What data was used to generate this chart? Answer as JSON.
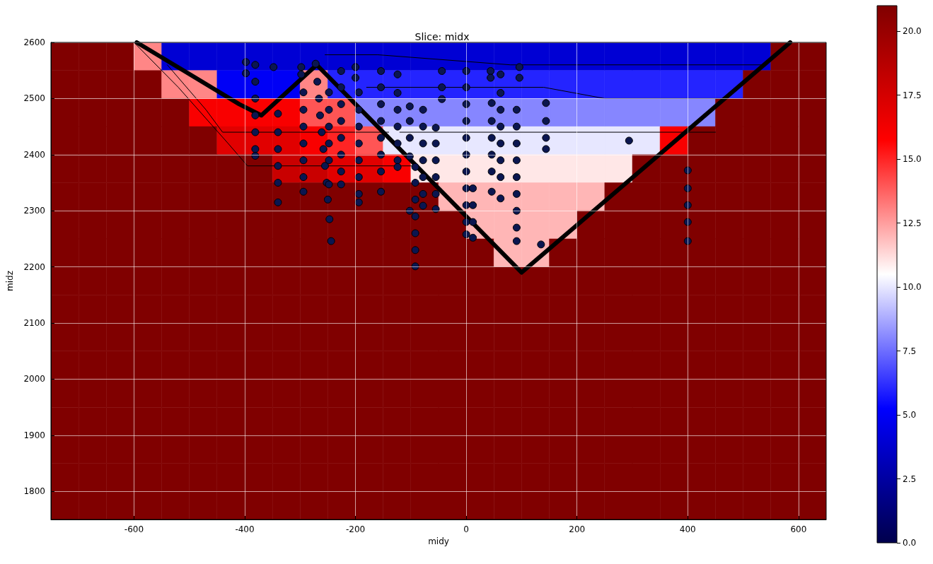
{
  "chart_data": {
    "type": "heatmap",
    "title": "Slice: midx",
    "xlabel": "midy",
    "ylabel": "midz",
    "cells": [
      [
        21,
        21,
        21,
        13,
        4,
        4,
        4,
        4,
        4,
        4,
        4,
        4,
        4,
        4,
        4,
        4,
        4,
        4,
        4,
        4,
        4,
        4,
        4,
        4,
        4,
        4,
        21,
        21
      ],
      [
        21,
        21,
        21,
        21,
        13,
        13,
        5,
        5,
        5,
        13,
        6,
        6,
        6,
        6,
        6,
        6,
        6,
        6,
        6,
        6,
        6,
        6,
        6,
        6,
        6,
        21,
        21,
        21
      ],
      [
        21,
        21,
        21,
        21,
        21,
        16,
        16,
        16,
        16,
        14,
        14,
        8,
        8,
        8,
        8,
        8,
        8,
        8,
        8,
        8,
        8,
        8,
        8,
        8,
        21,
        21,
        21,
        21
      ],
      [
        21,
        21,
        21,
        21,
        21,
        21,
        17,
        17,
        17,
        16,
        15,
        14,
        10,
        10,
        10,
        10,
        10,
        10,
        10,
        10,
        10,
        10,
        16,
        21,
        21,
        21,
        21,
        21
      ],
      [
        21,
        21,
        21,
        21,
        21,
        21,
        21,
        21,
        18,
        18,
        17,
        17,
        16,
        11,
        11,
        11,
        11,
        11,
        11,
        11,
        11,
        21,
        21,
        21,
        21,
        21,
        21,
        21
      ],
      [
        21,
        21,
        21,
        21,
        21,
        21,
        21,
        21,
        21,
        21,
        21,
        21,
        21,
        21,
        12,
        12,
        12,
        12,
        12,
        12,
        21,
        21,
        21,
        21,
        21,
        21,
        21,
        21
      ],
      [
        21,
        21,
        21,
        21,
        21,
        21,
        21,
        21,
        21,
        21,
        21,
        21,
        21,
        21,
        21,
        12,
        12,
        12,
        12,
        21,
        21,
        21,
        21,
        21,
        21,
        21,
        21,
        21
      ],
      [
        21,
        21,
        21,
        21,
        21,
        21,
        21,
        21,
        21,
        21,
        21,
        21,
        21,
        21,
        21,
        21,
        12,
        12,
        21,
        21,
        21,
        21,
        21,
        21,
        21,
        21,
        21,
        21
      ],
      [
        21,
        21,
        21,
        21,
        21,
        21,
        21,
        21,
        21,
        21,
        21,
        21,
        21,
        21,
        21,
        21,
        21,
        21,
        21,
        21,
        21,
        21,
        21,
        21,
        21,
        21,
        21,
        21
      ],
      [
        21,
        21,
        21,
        21,
        21,
        21,
        21,
        21,
        21,
        21,
        21,
        21,
        21,
        21,
        21,
        21,
        21,
        21,
        21,
        21,
        21,
        21,
        21,
        21,
        21,
        21,
        21,
        21
      ],
      [
        21,
        21,
        21,
        21,
        21,
        21,
        21,
        21,
        21,
        21,
        21,
        21,
        21,
        21,
        21,
        21,
        21,
        21,
        21,
        21,
        21,
        21,
        21,
        21,
        21,
        21,
        21,
        21
      ],
      [
        21,
        21,
        21,
        21,
        21,
        21,
        21,
        21,
        21,
        21,
        21,
        21,
        21,
        21,
        21,
        21,
        21,
        21,
        21,
        21,
        21,
        21,
        21,
        21,
        21,
        21,
        21,
        21
      ],
      [
        21,
        21,
        21,
        21,
        21,
        21,
        21,
        21,
        21,
        21,
        21,
        21,
        21,
        21,
        21,
        21,
        21,
        21,
        21,
        21,
        21,
        21,
        21,
        21,
        21,
        21,
        21,
        21
      ],
      [
        21,
        21,
        21,
        21,
        21,
        21,
        21,
        21,
        21,
        21,
        21,
        21,
        21,
        21,
        21,
        21,
        21,
        21,
        21,
        21,
        21,
        21,
        21,
        21,
        21,
        21,
        21,
        21
      ],
      [
        21,
        21,
        21,
        21,
        21,
        21,
        21,
        21,
        21,
        21,
        21,
        21,
        21,
        21,
        21,
        21,
        21,
        21,
        21,
        21,
        21,
        21,
        21,
        21,
        21,
        21,
        21,
        21
      ],
      [
        21,
        21,
        21,
        21,
        21,
        21,
        21,
        21,
        21,
        21,
        21,
        21,
        21,
        21,
        21,
        21,
        21,
        21,
        21,
        21,
        21,
        21,
        21,
        21,
        21,
        21,
        21,
        21
      ],
      [
        21,
        21,
        21,
        21,
        21,
        21,
        21,
        21,
        21,
        21,
        21,
        21,
        21,
        21,
        21,
        21,
        21,
        21,
        21,
        21,
        21,
        21,
        21,
        21,
        21,
        21,
        21,
        21
      ]
    ],
    "colors": [
      "#00004c",
      "#0000ff",
      "#ffffff",
      "#ff0000",
      "#800000"
    ],
    "clim": [
      0,
      21
    ],
    "cticks": [
      {
        "value": 0,
        "label": "0.0"
      },
      {
        "value": 2.5,
        "label": "2.5"
      },
      {
        "value": 5,
        "label": "5.0"
      },
      {
        "value": 7.5,
        "label": "7.5"
      },
      {
        "value": 10,
        "label": "10.0"
      },
      {
        "value": 12.5,
        "label": "12.5"
      },
      {
        "value": 15,
        "label": "15.0"
      },
      {
        "value": 17.5,
        "label": "17.5"
      },
      {
        "value": 20,
        "label": "20.0"
      }
    ],
    "series": [
      {
        "type": "line",
        "color": "#000000",
        "x": [
          -595,
          -410,
          -370,
          -270,
          100,
          585
        ],
        "values": [
          2600,
          2490,
          2470,
          2560,
          2190,
          2600
        ]
      },
      {
        "type": "line",
        "color": "#000000",
        "x": [
          -600,
          -520,
          -430,
          -395,
          -90
        ],
        "values": [
          2600,
          2520,
          2420,
          2380,
          2380
        ]
      },
      {
        "type": "line",
        "color": "#000000",
        "x": [
          -540,
          -470,
          -440,
          -140
        ],
        "values": [
          2560,
          2480,
          2440,
          2440
        ]
      },
      {
        "type": "line",
        "color": "#000000",
        "x": [
          -255,
          -160,
          80,
          540
        ],
        "values": [
          2578,
          2578,
          2560,
          2560
        ]
      },
      {
        "type": "line",
        "color": "#000000",
        "x": [
          -180,
          140,
          250,
          470
        ],
        "values": [
          2520,
          2520,
          2500,
          2500
        ]
      },
      {
        "type": "line",
        "color": "#000000",
        "x": [
          -120,
          450
        ],
        "values": [
          2440,
          2440
        ]
      },
      {
        "type": "scatter",
        "color": "#0b1650",
        "marker": "circle",
        "x": [
          -398,
          -398,
          -381,
          -381,
          -381,
          -381,
          -381,
          -381,
          -381,
          -348,
          -340,
          -340,
          -340,
          -340,
          -340,
          -340,
          -298,
          -298,
          -294,
          -294,
          -294,
          -294,
          -294,
          -294,
          -294,
          -272,
          -269,
          -266,
          -264,
          -261,
          -258,
          -255,
          -252,
          -250,
          -247,
          -244,
          -248,
          -248,
          -248,
          -248,
          -248,
          -248,
          -226,
          -226,
          -226,
          -226,
          -226,
          -226,
          -226,
          -226,
          -200,
          -200,
          -194,
          -194,
          -194,
          -194,
          -194,
          -194,
          -194,
          -194,
          -154,
          -154,
          -154,
          -154,
          -154,
          -154,
          -154,
          -154,
          -124,
          -124,
          -124,
          -124,
          -124,
          -124,
          -124,
          -102,
          -102,
          -102,
          -102,
          -92,
          -92,
          -92,
          -92,
          -92,
          -92,
          -92,
          -78,
          -78,
          -78,
          -78,
          -78,
          -78,
          -78,
          -55,
          -55,
          -55,
          -55,
          -55,
          -55,
          -44,
          -44,
          -44,
          0,
          0,
          0,
          0,
          0,
          0,
          0,
          0,
          0,
          0,
          0,
          12,
          12,
          12,
          12,
          44,
          44,
          46,
          46,
          46,
          46,
          46,
          46,
          62,
          62,
          62,
          62,
          62,
          62,
          62,
          62,
          91,
          91,
          91,
          91,
          91,
          91,
          91,
          91,
          91,
          96,
          96,
          144,
          144,
          144,
          144,
          294,
          400,
          400,
          400,
          400,
          400,
          -102,
          135
        ],
        "values": [
          2565,
          2545,
          2560,
          2530,
          2500,
          2470,
          2440,
          2410,
          2398,
          2556,
          2473,
          2440,
          2410,
          2380,
          2350,
          2315,
          2556,
          2543,
          2511,
          2480,
          2450,
          2420,
          2390,
          2360,
          2334,
          2562,
          2530,
          2500,
          2470,
          2440,
          2410,
          2380,
          2350,
          2320,
          2285,
          2246,
          2511,
          2480,
          2450,
          2420,
          2390,
          2347,
          2549,
          2520,
          2490,
          2460,
          2430,
          2400,
          2370,
          2347,
          2556,
          2537,
          2511,
          2480,
          2450,
          2420,
          2390,
          2360,
          2330,
          2315,
          2549,
          2520,
          2490,
          2460,
          2430,
          2400,
          2370,
          2334,
          2543,
          2510,
          2480,
          2450,
          2420,
          2390,
          2378,
          2486,
          2460,
          2430,
          2397,
          2378,
          2350,
          2320,
          2290,
          2260,
          2230,
          2201,
          2480,
          2450,
          2420,
          2390,
          2360,
          2330,
          2309,
          2448,
          2420,
          2390,
          2360,
          2330,
          2303,
          2549,
          2520,
          2499,
          2549,
          2520,
          2490,
          2460,
          2430,
          2400,
          2370,
          2340,
          2310,
          2280,
          2258,
          2340,
          2310,
          2280,
          2252,
          2549,
          2537,
          2492,
          2460,
          2430,
          2400,
          2370,
          2334,
          2543,
          2510,
          2480,
          2450,
          2420,
          2390,
          2360,
          2322,
          2480,
          2450,
          2420,
          2390,
          2360,
          2330,
          2300,
          2270,
          2246,
          2556,
          2537,
          2492,
          2460,
          2430,
          2410,
          2425,
          2372,
          2340,
          2310,
          2280,
          2246,
          2300,
          2240
        ]
      }
    ],
    "xlim": [
      -750,
      650
    ],
    "ylim": [
      1750,
      2600
    ],
    "xticks": [
      -600,
      -400,
      -200,
      0,
      200,
      400,
      600
    ],
    "yticks": [
      1800,
      1900,
      2000,
      2100,
      2200,
      2300,
      2400,
      2500,
      2600
    ],
    "grid": true
  }
}
